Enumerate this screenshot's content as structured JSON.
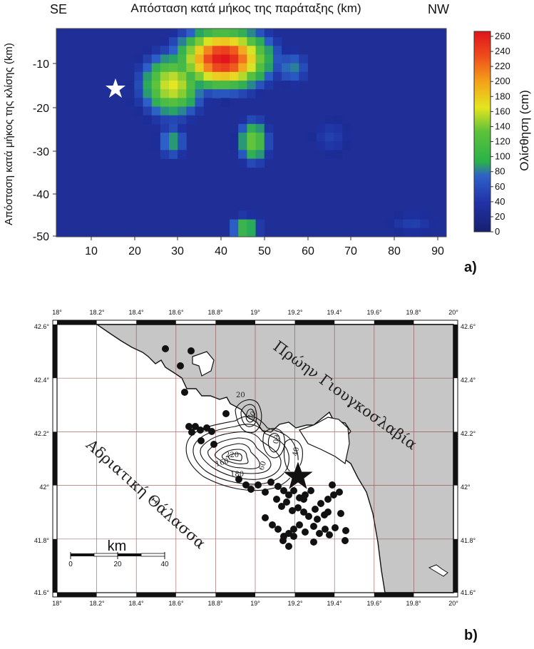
{
  "panel_a": {
    "label": "a)",
    "dir_left": "SE",
    "dir_right": "NW",
    "x_axis_title": "Απόσταση κατά μήκος της παράταξης (km)",
    "y_axis_title": "Απόσταση κατά μήκος της κλίσης (km)",
    "colorbar_title": "Ολίσθηση (cm)",
    "x_ticks": [
      "10",
      "20",
      "30",
      "40",
      "50",
      "60",
      "70",
      "80",
      "90"
    ],
    "y_ticks": [
      "-10",
      "-20",
      "-30",
      "-40",
      "-50"
    ],
    "colorbar_ticks": [
      "0",
      "20",
      "40",
      "60",
      "80",
      "100",
      "120",
      "140",
      "160",
      "180",
      "200",
      "220",
      "240",
      "260"
    ],
    "colors": {
      "low": "#1b2a8c",
      "mid": "#2ab24a",
      "high": "#e8141b"
    }
  },
  "panel_b": {
    "label": "b)",
    "lon_ticks": [
      "18°",
      "18.2°",
      "18.4°",
      "18.6°",
      "18.8°",
      "19°",
      "19.2°",
      "19.4°",
      "19.6°",
      "19.8°",
      "20°"
    ],
    "lat_ticks": [
      "42.6°",
      "42.4°",
      "42.2°",
      "42°",
      "41.8°",
      "41.6°"
    ],
    "land_label": "Πρώην Γιουγκοσλαβία",
    "sea_label": "Αδριατική Θάλασσα",
    "scale_unit": "km",
    "scale_ticks": [
      "0",
      "20",
      "40"
    ],
    "contour_labels": [
      "20",
      "60",
      "60",
      "220",
      "160",
      "180",
      "60",
      "40"
    ],
    "colors": {
      "land": "#c6c6c6",
      "sea": "#ffffff",
      "grid": "#8b3a3a"
    }
  }
}
